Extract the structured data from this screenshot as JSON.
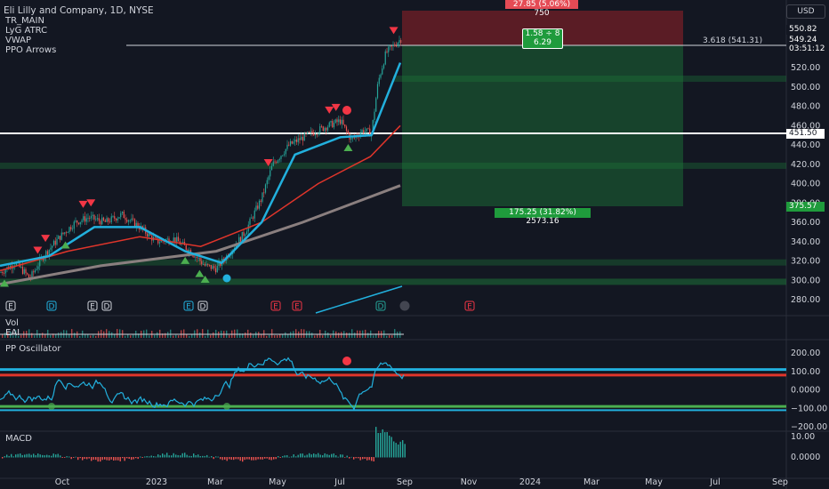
{
  "header": {
    "symbol_title": "Eli Lilly and Company, 1D, NYSE",
    "indicators": [
      "TR_MAIN",
      "LyG ATRC",
      "VWAP",
      "PPO Arrows"
    ],
    "currency": "USD"
  },
  "price_scale": {
    "ticks": [
      "520.00",
      "500.00",
      "480.00",
      "460.00",
      "440.00",
      "420.00",
      "400.00",
      "380.00",
      "360.00",
      "340.00",
      "320.00",
      "300.00",
      "280.00"
    ],
    "tick_values": [
      520,
      500,
      480,
      460,
      440,
      420,
      400,
      380,
      360,
      340,
      320,
      300,
      280
    ],
    "current_price": "549.24",
    "countdown": "03:51:12",
    "target_price": "550.82",
    "level_label": "451.50",
    "stop_label": "375.57"
  },
  "position_tool": {
    "risk_label": "27.85 (5.06%) 750",
    "ratio_line1": "1.58 ÷ 8",
    "ratio_line2": "6.29",
    "reward_label": "175.25 (31.82%) 2573.16",
    "fib_label": "3.618 (541.31)"
  },
  "time_axis": {
    "labels": [
      "Oct",
      "2023",
      "Mar",
      "May",
      "Jul",
      "Sep",
      "Nov",
      "2024",
      "Mar",
      "May",
      "Jul",
      "Sep"
    ]
  },
  "vol_pane": {
    "title": "Vol",
    "sub": "EAI"
  },
  "osc_pane": {
    "title": "PP Oscillator",
    "ticks": [
      "200.00",
      "100.00",
      "0.0000",
      "−100.00",
      "−200.00"
    ],
    "tick_values": [
      200,
      100,
      0,
      -100,
      -200
    ],
    "upper_band": 110,
    "lower_band": -110,
    "red_line": 80,
    "green_line": -90
  },
  "macd_pane": {
    "title": "MACD",
    "ticks": [
      "10.00",
      "0.0000"
    ],
    "tick_values": [
      10,
      0
    ]
  },
  "event_markers": [
    "E",
    "D",
    "E",
    "D",
    "E",
    "D",
    "E",
    "E",
    "D"
  ],
  "chart_data": {
    "type": "candlestick",
    "title": "Eli Lilly and Company, 1D, NYSE",
    "y_unit": "USD",
    "close_path": [
      [
        "2022-09-01",
        308
      ],
      [
        "2022-09-15",
        318
      ],
      [
        "2022-09-28",
        302
      ],
      [
        "2022-10-10",
        325
      ],
      [
        "2022-10-25",
        345
      ],
      [
        "2022-11-08",
        360
      ],
      [
        "2022-11-20",
        365
      ],
      [
        "2022-12-05",
        360
      ],
      [
        "2022-12-20",
        368
      ],
      [
        "2023-01-05",
        355
      ],
      [
        "2023-01-20",
        340
      ],
      [
        "2023-02-05",
        343
      ],
      [
        "2023-02-20",
        330
      ],
      [
        "2023-03-05",
        315
      ],
      [
        "2023-03-15",
        312
      ],
      [
        "2023-03-28",
        330
      ],
      [
        "2023-04-10",
        350
      ],
      [
        "2023-04-25",
        385
      ],
      [
        "2023-05-05",
        420
      ],
      [
        "2023-05-20",
        440
      ],
      [
        "2023-06-05",
        450
      ],
      [
        "2023-06-20",
        458
      ],
      [
        "2023-07-05",
        465
      ],
      [
        "2023-07-15",
        445
      ],
      [
        "2023-07-25",
        455
      ],
      [
        "2023-08-02",
        452
      ],
      [
        "2023-08-08",
        505
      ],
      [
        "2023-08-15",
        535
      ],
      [
        "2023-08-28",
        549.24
      ]
    ],
    "ema_fast": [
      [
        "2022-09-01",
        315
      ],
      [
        "2022-10-15",
        325
      ],
      [
        "2022-11-25",
        355
      ],
      [
        "2023-01-05",
        355
      ],
      [
        "2023-02-15",
        330
      ],
      [
        "2023-03-20",
        318
      ],
      [
        "2023-04-25",
        360
      ],
      [
        "2023-05-25",
        430
      ],
      [
        "2023-07-05",
        448
      ],
      [
        "2023-08-02",
        450
      ],
      [
        "2023-08-28",
        525
      ]
    ],
    "ema_mid": [
      [
        "2022-09-01",
        310
      ],
      [
        "2022-11-01",
        330
      ],
      [
        "2023-01-05",
        345
      ],
      [
        "2023-03-01",
        335
      ],
      [
        "2023-04-25",
        360
      ],
      [
        "2023-06-15",
        400
      ],
      [
        "2023-08-01",
        428
      ],
      [
        "2023-08-28",
        460
      ]
    ],
    "ema_slow": [
      [
        "2022-09-01",
        296
      ],
      [
        "2022-12-01",
        315
      ],
      [
        "2023-03-15",
        330
      ],
      [
        "2023-06-01",
        360
      ],
      [
        "2023-08-28",
        398
      ]
    ],
    "signals_sell": [
      "2022-10-05",
      "2022-10-12",
      "2022-11-15",
      "2022-11-22",
      "2023-05-01",
      "2023-06-25",
      "2023-07-01",
      "2023-08-22"
    ],
    "signals_buy": [
      "2022-09-05",
      "2022-10-30",
      "2023-02-15",
      "2023-02-28",
      "2023-03-05",
      "2023-07-12"
    ],
    "position": {
      "entry": 451.5,
      "target": 550.82,
      "stop": 375.57
    }
  }
}
